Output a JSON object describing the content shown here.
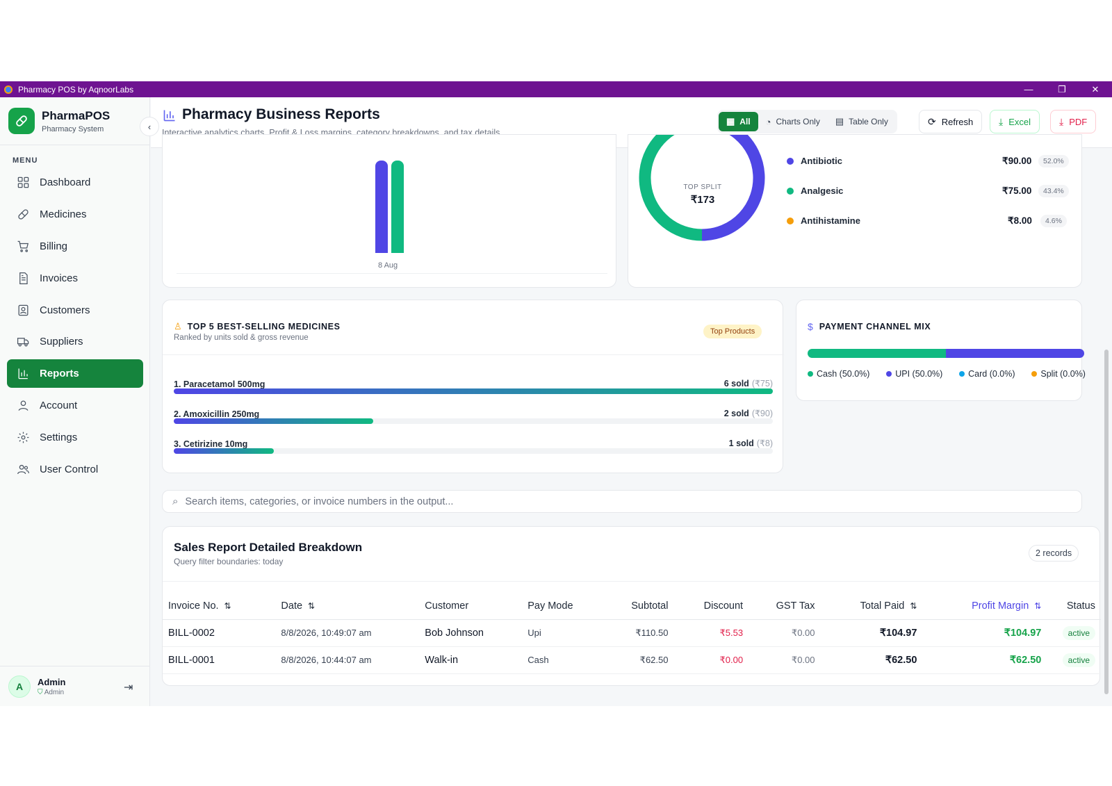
{
  "window": {
    "title": "Pharmacy POS by AqnoorLabs",
    "minimize": "—",
    "maximize": "❐",
    "close": "✕"
  },
  "brand": {
    "name": "PharmaPOS",
    "subtitle": "Pharmacy System"
  },
  "menu_label": "MENU",
  "nav": [
    {
      "label": "Dashboard",
      "icon": "dashboard-icon"
    },
    {
      "label": "Medicines",
      "icon": "pill-icon"
    },
    {
      "label": "Billing",
      "icon": "cart-icon"
    },
    {
      "label": "Invoices",
      "icon": "document-icon"
    },
    {
      "label": "Customers",
      "icon": "contact-icon"
    },
    {
      "label": "Suppliers",
      "icon": "truck-icon"
    },
    {
      "label": "Reports",
      "icon": "bar-chart-icon",
      "active": true
    },
    {
      "label": "Account",
      "icon": "user-icon"
    },
    {
      "label": "Settings",
      "icon": "gear-icon"
    },
    {
      "label": "User Control",
      "icon": "users-icon"
    }
  ],
  "user": {
    "initial": "A",
    "name": "Admin",
    "role": "Admin"
  },
  "header": {
    "title": "Pharmacy Business Reports",
    "subtitle": "Interactive analytics charts, Profit & Loss margins, category breakdowns, and tax details.",
    "view_all": "All",
    "view_charts": "Charts Only",
    "view_table": "Table Only",
    "refresh": "Refresh",
    "excel": "Excel",
    "pdf": "PDF"
  },
  "sales_chart": {
    "x_label": "8 Aug",
    "colors": [
      "#5046e5",
      "#10b981"
    ]
  },
  "category_split": {
    "center_label": "TOP SPLIT",
    "center_value": "₹173",
    "items": [
      {
        "name": "Antibiotic",
        "value": "₹90.00",
        "pct": "52.0%",
        "fraction": 0.52,
        "color": "#4f46e5"
      },
      {
        "name": "Analgesic",
        "value": "₹75.00",
        "pct": "43.4%",
        "fraction": 0.434,
        "color": "#10b981"
      },
      {
        "name": "Antihistamine",
        "value": "₹8.00",
        "pct": "4.6%",
        "fraction": 0.046,
        "color": "#f59e0b"
      }
    ]
  },
  "top_products": {
    "title": "TOP 5 BEST-SELLING MEDICINES",
    "subtitle": "Ranked by units sold & gross revenue",
    "badge": "Top Products",
    "items": [
      {
        "name": "1. Paracetamol 500mg",
        "sold": "6 sold",
        "revenue": "(₹75)",
        "fraction": 1.0
      },
      {
        "name": "2. Amoxicillin 250mg",
        "sold": "2 sold",
        "revenue": "(₹90)",
        "fraction": 0.333
      },
      {
        "name": "3. Cetirizine 10mg",
        "sold": "1 sold",
        "revenue": "(₹8)",
        "fraction": 0.167
      }
    ]
  },
  "payment_mix": {
    "title": "PAYMENT CHANNEL MIX",
    "channels": [
      {
        "label": "Cash (50.0%)",
        "fraction": 0.5,
        "color": "#10b981"
      },
      {
        "label": "UPI (50.0%)",
        "fraction": 0.5,
        "color": "#4f46e5"
      },
      {
        "label": "Card (0.0%)",
        "fraction": 0.0,
        "color": "#0ea5e9"
      },
      {
        "label": "Split (0.0%)",
        "fraction": 0.0,
        "color": "#f59e0b"
      }
    ]
  },
  "search": {
    "placeholder": "Search items, categories, or invoice numbers in the output..."
  },
  "table": {
    "title": "Sales Report Detailed Breakdown",
    "subtitle": "Query filter boundaries: today",
    "records": "2 records",
    "columns": [
      "Invoice No.",
      "Date",
      "Customer",
      "Pay Mode",
      "Subtotal",
      "Discount",
      "GST Tax",
      "Total Paid",
      "Profit Margin",
      "Status"
    ],
    "rows": [
      {
        "invoice": "BILL-0002",
        "date": "8/8/2026, 10:49:07 am",
        "customer": "Bob Johnson",
        "mode": "Upi",
        "subtotal": "₹110.50",
        "discount": "₹5.53",
        "gst": "₹0.00",
        "total": "₹104.97",
        "profit": "₹104.97",
        "status": "active"
      },
      {
        "invoice": "BILL-0001",
        "date": "8/8/2026, 10:44:07 am",
        "customer": "Walk-in",
        "mode": "Cash",
        "subtotal": "₹62.50",
        "discount": "₹0.00",
        "gst": "₹0.00",
        "total": "₹62.50",
        "profit": "₹62.50",
        "status": "active"
      }
    ]
  }
}
